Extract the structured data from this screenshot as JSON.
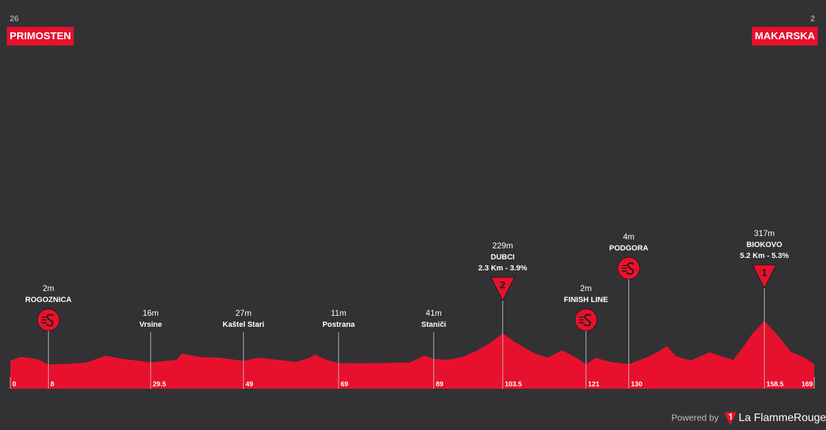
{
  "chart_data": {
    "type": "area",
    "start": {
      "altitude": 26,
      "name": "PRIMOSTEN"
    },
    "finish": {
      "altitude": 2,
      "name": "MAKARSKA"
    },
    "color": "#e8112d",
    "x": [
      0,
      2,
      4,
      6,
      8,
      12,
      16,
      20,
      24,
      29.5,
      35,
      36,
      40,
      44,
      49,
      52,
      55,
      60,
      63,
      64,
      66,
      69,
      75,
      84,
      87,
      89,
      92,
      95,
      98,
      101,
      103.5,
      106,
      110,
      113,
      116,
      119,
      121,
      123,
      126,
      130,
      134,
      136,
      138,
      140,
      143,
      147,
      150,
      152,
      154,
      156,
      158.5,
      161,
      164,
      167,
      169
    ],
    "values": [
      26,
      55,
      50,
      35,
      2,
      5,
      15,
      65,
      40,
      16,
      35,
      80,
      55,
      50,
      27,
      50,
      40,
      20,
      50,
      75,
      40,
      11,
      10,
      15,
      65,
      41,
      35,
      55,
      100,
      160,
      229,
      165,
      85,
      50,
      105,
      50,
      2,
      50,
      20,
      4,
      55,
      90,
      135,
      60,
      30,
      90,
      55,
      35,
      125,
      225,
      317,
      225,
      95,
      50,
      2
    ],
    "xlim": [
      0,
      169
    ],
    "ylim": [
      -175,
      500
    ],
    "xticks": [
      0,
      8,
      29.5,
      49,
      69,
      89,
      103.5,
      121,
      130,
      158.5,
      169
    ],
    "waypoints": [
      {
        "km": 8,
        "altitude": {
          "value": 2,
          "label": "2m"
        },
        "name": "ROGOZNICA",
        "kind": "sprint"
      },
      {
        "km": 29.5,
        "altitude": {
          "value": 16,
          "label": "16m"
        },
        "name": "Vrsine",
        "kind": "place"
      },
      {
        "km": 49,
        "altitude": {
          "value": 27,
          "label": "27m"
        },
        "name": "Kaštel Stari",
        "kind": "place"
      },
      {
        "km": 69,
        "altitude": {
          "value": 11,
          "label": "11m"
        },
        "name": "Postrana",
        "kind": "place"
      },
      {
        "km": 89,
        "altitude": {
          "value": 41,
          "label": "41m"
        },
        "name": "Staniči",
        "kind": "place"
      },
      {
        "km": 103.5,
        "altitude": {
          "value": 229,
          "label": "229m"
        },
        "name": "DUBCI",
        "detail": "2.3 Km - 3.9%",
        "kind": "climb",
        "category": 2
      },
      {
        "km": 121,
        "altitude": {
          "value": 2,
          "label": "2m"
        },
        "name": "FINISH LINE",
        "kind": "sprint"
      },
      {
        "km": 130,
        "altitude": {
          "value": 4,
          "label": "4m"
        },
        "name": "PODGORA",
        "kind": "sprint"
      },
      {
        "km": 158.5,
        "altitude": {
          "value": 317,
          "label": "317m"
        },
        "name": "BIOKOVO",
        "detail": "5.2 Km - 5.3%",
        "kind": "climb",
        "category": 1
      }
    ],
    "footer": {
      "powered": "Powered by",
      "brand": "La FlammeRouge"
    }
  }
}
